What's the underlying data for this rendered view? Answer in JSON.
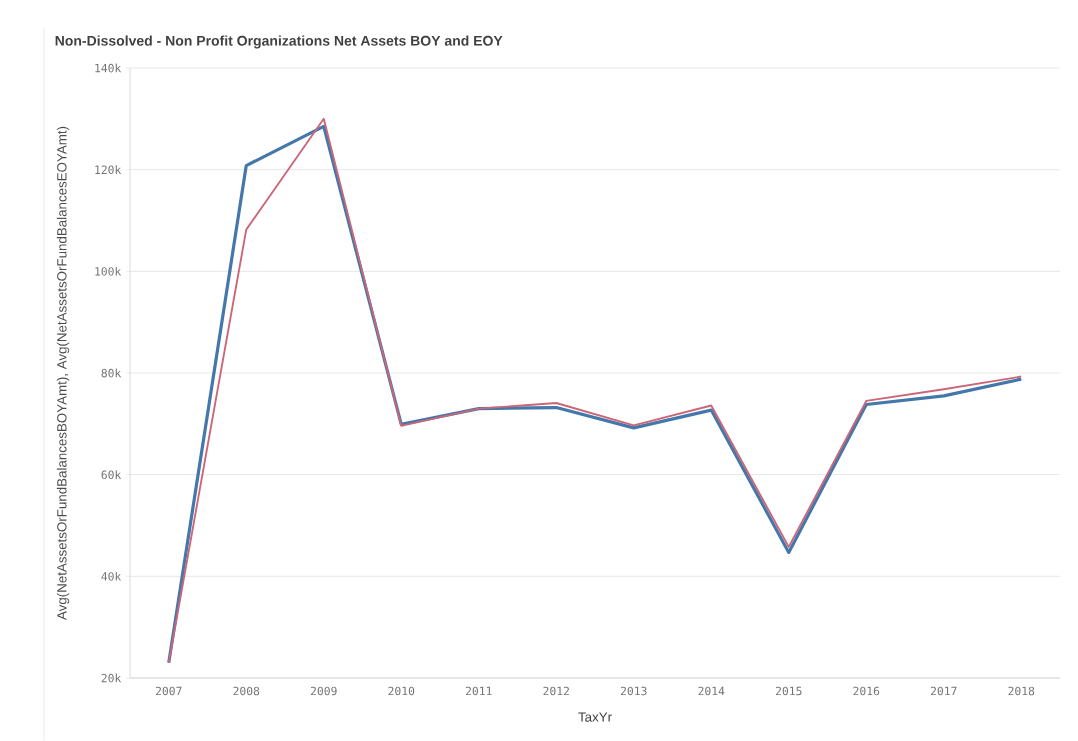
{
  "chart_data": {
    "type": "line",
    "title": "Non-Dissolved - Non Profit Organizations Net Assets BOY and EOY",
    "xlabel": "TaxYr",
    "ylabel": "Avg(NetAssetsOrFundBalancesBOYAmt), Avg(NetAssetsOrFundBalancesEOYAmt)",
    "categories": [
      "2007",
      "2008",
      "2009",
      "2010",
      "2011",
      "2012",
      "2013",
      "2014",
      "2015",
      "2016",
      "2017",
      "2018"
    ],
    "series": [
      {
        "color": "#4477aa",
        "values": [
          23000,
          120800,
          128500,
          69900,
          73000,
          73200,
          69200,
          72700,
          44700,
          73800,
          75500,
          78800
        ]
      },
      {
        "color": "#cc6677",
        "values": [
          23000,
          108200,
          130000,
          69600,
          73000,
          74100,
          69700,
          73600,
          45800,
          74500,
          76800,
          79300
        ]
      }
    ],
    "ylim": [
      20000,
      140000
    ],
    "yticks": [
      {
        "value": 20000,
        "label": "20k"
      },
      {
        "value": 40000,
        "label": "40k"
      },
      {
        "value": 60000,
        "label": "60k"
      },
      {
        "value": 80000,
        "label": "80k"
      },
      {
        "value": 100000,
        "label": "100k"
      },
      {
        "value": 120000,
        "label": "120k"
      },
      {
        "value": 140000,
        "label": "140k"
      }
    ],
    "grid": "y",
    "marker": "none",
    "line_style": "solid"
  }
}
